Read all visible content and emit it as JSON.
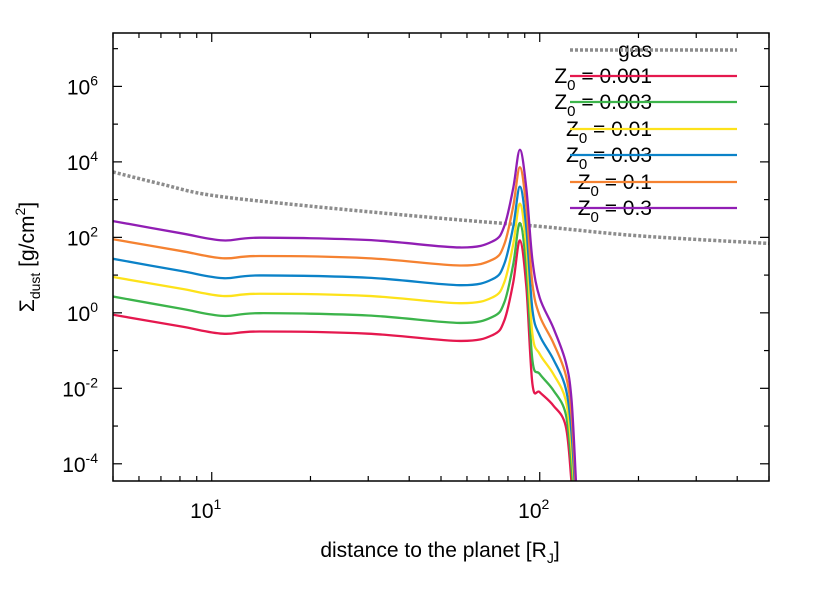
{
  "chart_data": {
    "type": "line",
    "title": "",
    "xlabel": {
      "main": "distance to the planet [R",
      "sub": "J",
      "tail": "]"
    },
    "ylabel": {
      "sym": "Σ",
      "sub": "dust",
      "main": " [g/cm",
      "sup": "2",
      "tail": "]"
    },
    "xscale": "log",
    "yscale": "log",
    "xlim": [
      5,
      500
    ],
    "ylim": [
      3.5e-05,
      26000000.0
    ],
    "x_major_ticks": [
      {
        "base": "10",
        "exp": "1",
        "value": 10
      },
      {
        "base": "10",
        "exp": "2",
        "value": 100
      }
    ],
    "x_minor_ticks": [
      5,
      6,
      7,
      8,
      9,
      20,
      30,
      40,
      50,
      60,
      70,
      80,
      90,
      200,
      300,
      400,
      500
    ],
    "y_major_ticks": [
      {
        "base": "10",
        "exp": "-4",
        "value": 0.0001
      },
      {
        "base": "10",
        "exp": "-2",
        "value": 0.01
      },
      {
        "base": "10",
        "exp": "0",
        "value": 1
      },
      {
        "base": "10",
        "exp": "2",
        "value": 100
      },
      {
        "base": "10",
        "exp": "4",
        "value": 10000.0
      },
      {
        "base": "10",
        "exp": "6",
        "value": 1000000.0
      }
    ],
    "y_minor_ticks": [
      0.001,
      0.1,
      10,
      1000.0,
      100000.0,
      10000000.0
    ],
    "grid": false,
    "legend_position": "top-right",
    "gas": {
      "name": "gas",
      "color": "#8c8c8c",
      "style": "dotted",
      "x": [
        5,
        7,
        10,
        20,
        50,
        100,
        200,
        500
      ],
      "y": [
        5400,
        2600,
        1300,
        670,
        320,
        195,
        110,
        69
      ]
    },
    "x": [
      5,
      8,
      10.8,
      14,
      30,
      57,
      72,
      78,
      83,
      87,
      91,
      95,
      100,
      110,
      120,
      125,
      129
    ],
    "series": [
      {
        "name_main": "Z",
        "name_sub": "0",
        "name_tail": " = 0.001",
        "color": "#e5184e",
        "y": [
          0.89,
          0.44,
          0.28,
          0.32,
          0.28,
          0.18,
          0.26,
          0.63,
          6.3,
          83,
          5.0,
          0.013,
          0.0079,
          0.0035,
          0.001,
          3.2e-05,
          1e-06
        ]
      },
      {
        "name_main": "Z",
        "name_sub": "0",
        "name_tail": " = 0.003",
        "color": "#3cb44b",
        "y": [
          2.7,
          1.3,
          0.83,
          0.98,
          0.85,
          0.54,
          0.79,
          1.9,
          19,
          240,
          16,
          0.055,
          0.024,
          0.0089,
          0.0021,
          8.3e-05,
          1.9e-06
        ]
      },
      {
        "name_main": "Z",
        "name_sub": "0",
        "name_tail": " = 0.01",
        "color": "#fde21a",
        "y": [
          8.9,
          4.4,
          2.8,
          3.2,
          2.8,
          1.8,
          2.6,
          6.5,
          65,
          780,
          56,
          0.27,
          0.081,
          0.024,
          0.0049,
          0.00025,
          4.1e-06
        ]
      },
      {
        "name_main": "Z",
        "name_sub": "0",
        "name_tail": " = 0.03",
        "color": "#0b82c8",
        "y": [
          27,
          13,
          8.3,
          9.8,
          8.5,
          5.4,
          7.9,
          20,
          190,
          2200,
          180,
          1.2,
          0.25,
          0.059,
          0.01,
          0.00065,
          7.8e-06
        ]
      },
      {
        "name_main": "Z",
        "name_sub": "0",
        "name_tail": " = 0.1",
        "color": "#f58231",
        "y": [
          89,
          44,
          28,
          32,
          28,
          18,
          26,
          66,
          660,
          7200,
          630,
          5.8,
          0.83,
          0.16,
          0.023,
          0.0019,
          1.6e-05
        ]
      },
      {
        "name_main": "Z",
        "name_sub": "0",
        "name_tail": " = 0.3",
        "color": "#911eb4",
        "y": [
          270,
          130,
          83,
          98,
          85,
          54,
          79,
          200,
          2000,
          21000,
          2000,
          25,
          2.5,
          0.4,
          0.05,
          0.005,
          3.2e-05
        ]
      }
    ]
  }
}
